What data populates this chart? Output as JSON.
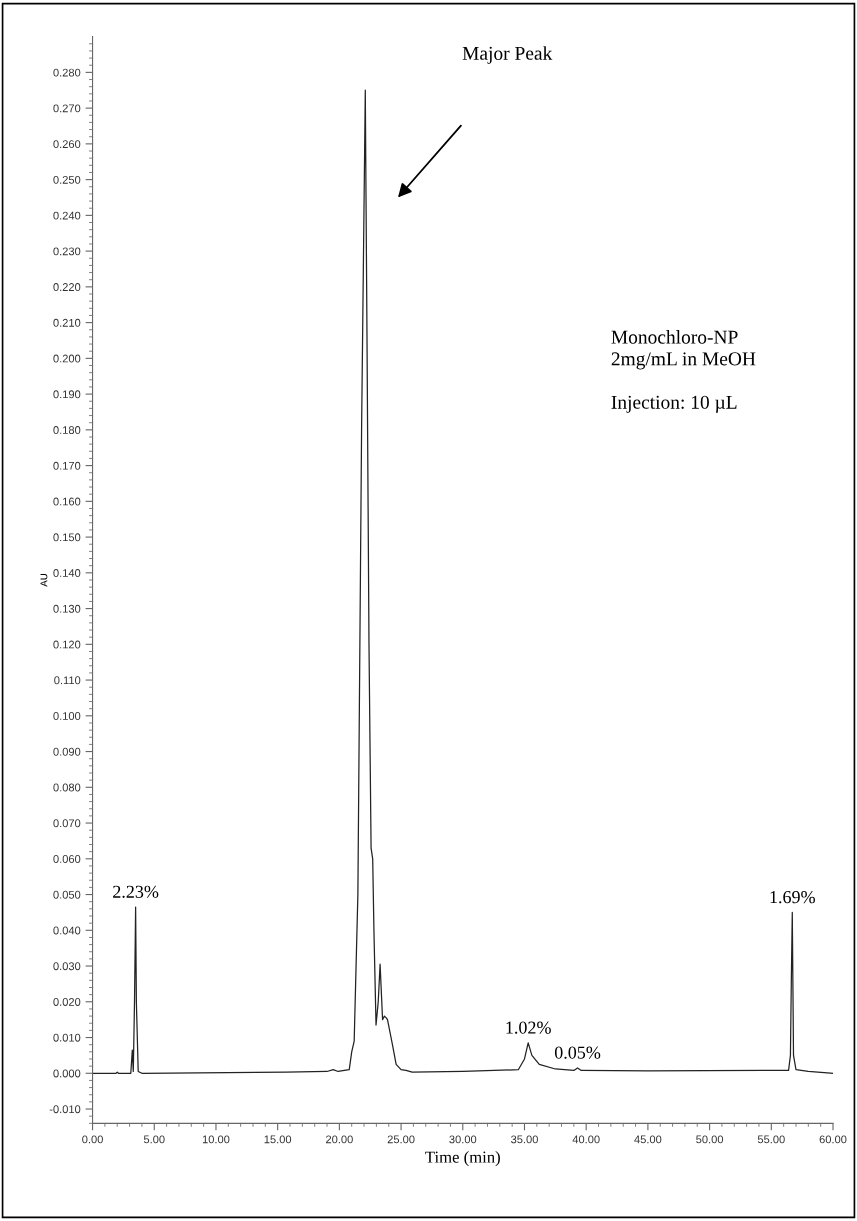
{
  "chart_data": {
    "type": "line",
    "xlabel": "Time (min)",
    "ylabel": "AU",
    "xlim": [
      0,
      60
    ],
    "ylim": [
      -0.014,
      0.29
    ],
    "xticks": [
      {
        "value": 0,
        "label": "0.00"
      },
      {
        "value": 5,
        "label": "5.00"
      },
      {
        "value": 10,
        "label": "10.00"
      },
      {
        "value": 15,
        "label": "15.00"
      },
      {
        "value": 20,
        "label": "20.00"
      },
      {
        "value": 25,
        "label": "25.00"
      },
      {
        "value": 30,
        "label": "30.00"
      },
      {
        "value": 35,
        "label": "35.00"
      },
      {
        "value": 40,
        "label": "40.00"
      },
      {
        "value": 45,
        "label": "45.00"
      },
      {
        "value": 50,
        "label": "50.00"
      },
      {
        "value": 55,
        "label": "55.00"
      },
      {
        "value": 60,
        "label": "60.00"
      }
    ],
    "yticks": [
      {
        "value": -0.01,
        "label": "-0.010"
      },
      {
        "value": 0,
        "label": "0.000"
      },
      {
        "value": 0.01,
        "label": "0.010"
      },
      {
        "value": 0.02,
        "label": "0.020"
      },
      {
        "value": 0.03,
        "label": "0.030"
      },
      {
        "value": 0.04,
        "label": "0.040"
      },
      {
        "value": 0.05,
        "label": "0.050"
      },
      {
        "value": 0.06,
        "label": "0.060"
      },
      {
        "value": 0.07,
        "label": "0.070"
      },
      {
        "value": 0.08,
        "label": "0.080"
      },
      {
        "value": 0.09,
        "label": "0.090"
      },
      {
        "value": 0.1,
        "label": "0.100"
      },
      {
        "value": 0.11,
        "label": "0.110"
      },
      {
        "value": 0.12,
        "label": "0.120"
      },
      {
        "value": 0.13,
        "label": "0.130"
      },
      {
        "value": 0.14,
        "label": "0.140"
      },
      {
        "value": 0.15,
        "label": "0.150"
      },
      {
        "value": 0.16,
        "label": "0.160"
      },
      {
        "value": 0.17,
        "label": "0.170"
      },
      {
        "value": 0.18,
        "label": "0.180"
      },
      {
        "value": 0.19,
        "label": "0.190"
      },
      {
        "value": 0.2,
        "label": "0.200"
      },
      {
        "value": 0.21,
        "label": "0.210"
      },
      {
        "value": 0.22,
        "label": "0.220"
      },
      {
        "value": 0.23,
        "label": "0.230"
      },
      {
        "value": 0.24,
        "label": "0.240"
      },
      {
        "value": 0.25,
        "label": "0.250"
      },
      {
        "value": 0.26,
        "label": "0.260"
      },
      {
        "value": 0.27,
        "label": "0.270"
      },
      {
        "value": 0.28,
        "label": "0.280"
      }
    ],
    "grid": false,
    "legend": false,
    "marker": "none",
    "line_style": "solid",
    "series": [
      {
        "color": "#222222",
        "x": [
          0,
          1.9,
          2.0,
          2.1,
          3.1,
          3.22,
          3.3,
          3.4,
          3.49,
          3.55,
          3.7,
          4.0,
          15.7,
          19.0,
          19.5,
          19.9,
          20.4,
          20.8,
          21.0,
          21.2,
          21.5,
          21.8,
          22.1,
          22.25,
          22.4,
          22.57,
          22.7,
          22.8,
          22.97,
          23.15,
          23.3,
          23.5,
          23.65,
          23.8,
          23.9,
          24.3,
          24.6,
          25.0,
          25.4,
          25.9,
          30.0,
          34.5,
          35.0,
          35.3,
          35.6,
          36.2,
          37.5,
          39.0,
          39.3,
          39.6,
          45.0,
          56.4,
          56.55,
          56.62,
          56.7,
          56.8,
          57.0,
          58.0,
          60.0
        ],
        "values": [
          0,
          0,
          0.0003,
          0,
          0,
          0.0065,
          0.0005,
          0.02,
          0.0465,
          0.02,
          0.0005,
          0,
          0.0003,
          0.0005,
          0.001,
          0.0005,
          0.0008,
          0.001,
          0.006,
          0.009,
          0.05,
          0.18,
          0.275,
          0.2,
          0.12,
          0.063,
          0.06,
          0.04,
          0.0135,
          0.02,
          0.0305,
          0.015,
          0.016,
          0.0155,
          0.015,
          0.008,
          0.0025,
          0.001,
          0.0008,
          0.0003,
          0.0005,
          0.001,
          0.004,
          0.0085,
          0.005,
          0.0025,
          0.0012,
          0.0008,
          0.0015,
          0.0008,
          0.0007,
          0.0008,
          0.005,
          0.025,
          0.045,
          0.005,
          0.001,
          0.0005,
          0
        ]
      }
    ],
    "annotations": [
      "Major Peak",
      {
        "text": "2.23%",
        "x": 3.49,
        "y": 0.0465
      },
      {
        "text": "1.02%",
        "x": 35.3,
        "y": 0.0085
      },
      {
        "text": "0.05%",
        "x": 39.3,
        "y": 0.0015
      },
      {
        "text": "1.69%",
        "x": 56.7,
        "y": 0.045
      },
      "Monochloro-NP\n2mg/mL in MeOH\n\nInjection: 10 µL"
    ]
  }
}
